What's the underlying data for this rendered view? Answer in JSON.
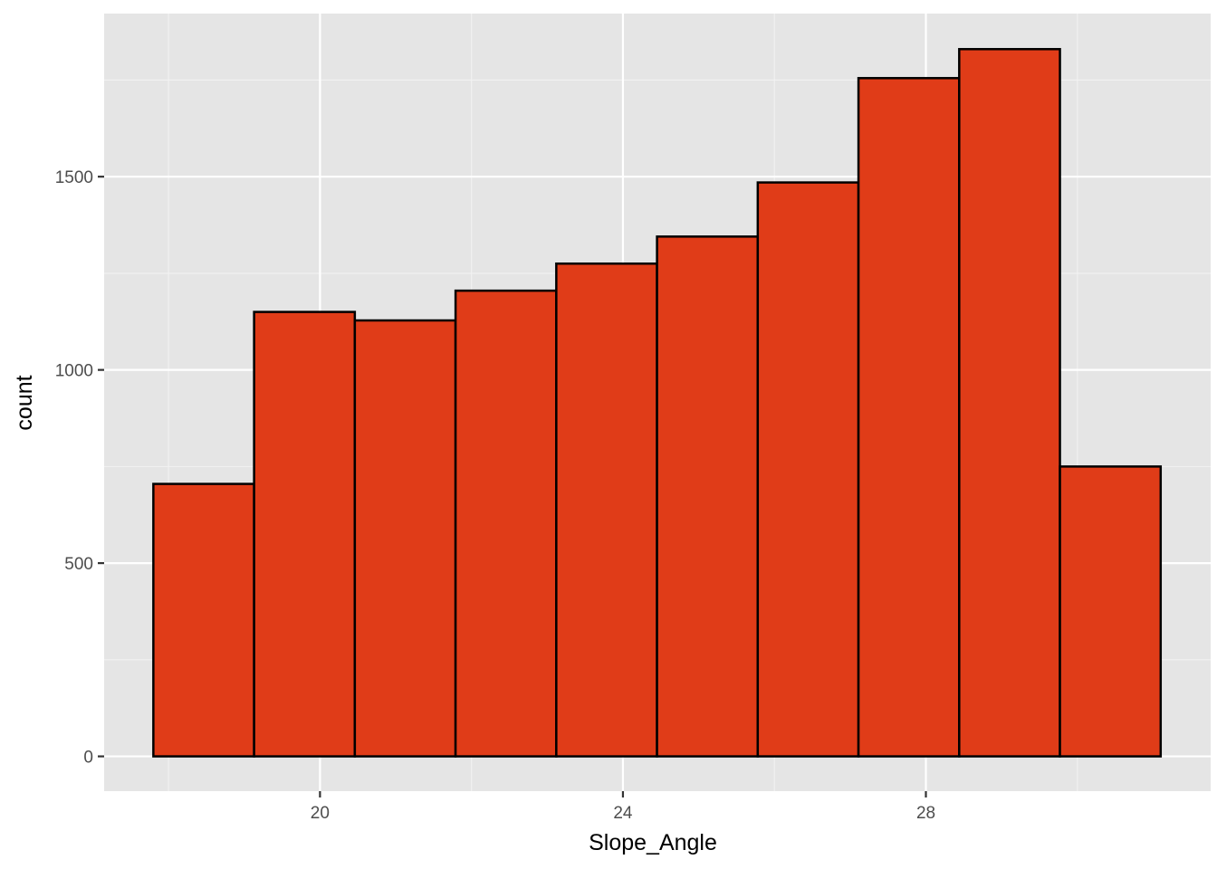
{
  "chart_data": {
    "type": "bar",
    "subtype": "histogram",
    "xlabel": "Slope_Angle",
    "ylabel": "count",
    "bins": [
      {
        "x_start": 17.8,
        "x_end": 19.13,
        "count": 705
      },
      {
        "x_start": 19.13,
        "x_end": 20.46,
        "count": 1150
      },
      {
        "x_start": 20.46,
        "x_end": 21.79,
        "count": 1128
      },
      {
        "x_start": 21.79,
        "x_end": 23.12,
        "count": 1205
      },
      {
        "x_start": 23.12,
        "x_end": 24.45,
        "count": 1275
      },
      {
        "x_start": 24.45,
        "x_end": 25.78,
        "count": 1345
      },
      {
        "x_start": 25.78,
        "x_end": 27.11,
        "count": 1485
      },
      {
        "x_start": 27.11,
        "x_end": 28.44,
        "count": 1755
      },
      {
        "x_start": 28.44,
        "x_end": 29.77,
        "count": 1830
      },
      {
        "x_start": 29.77,
        "x_end": 31.1,
        "count": 750
      }
    ],
    "xlim": [
      17.15,
      31.76
    ],
    "ylim": [
      -90,
      1922
    ],
    "x_ticks": [
      {
        "value": 20,
        "label": "20"
      },
      {
        "value": 24,
        "label": "24"
      },
      {
        "value": 28,
        "label": "28"
      }
    ],
    "y_ticks": [
      {
        "value": 0,
        "label": "0"
      },
      {
        "value": 500,
        "label": "500"
      },
      {
        "value": 1000,
        "label": "1000"
      },
      {
        "value": 1500,
        "label": "1500"
      }
    ],
    "x_minor_ticks": [
      18,
      22,
      26,
      30
    ],
    "y_minor_ticks": [
      250,
      750,
      1250,
      1750
    ],
    "grid": true,
    "legend": "none",
    "colors": {
      "bar_fill": "#e03c18",
      "bar_outline": "#000000",
      "panel_background": "#e5e5e5",
      "grid": "#ffffff"
    }
  }
}
